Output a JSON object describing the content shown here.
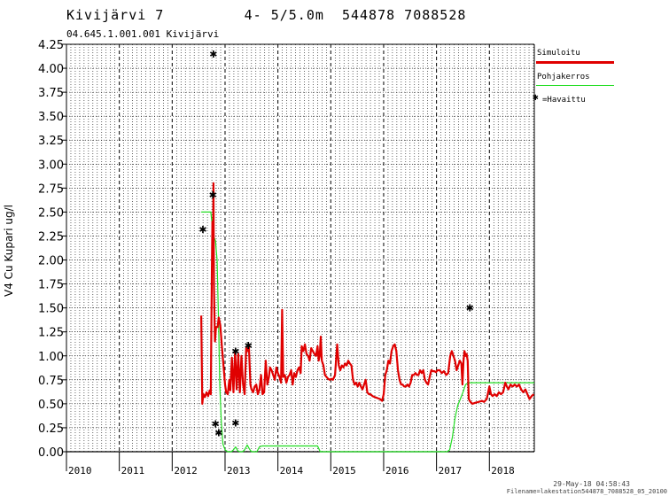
{
  "header": {
    "title": "Kivijärvi 7         4- 5/5.0m  544878 7088528",
    "station": "04.645.1.001.001 Kivijärvi",
    "footer_date": "29-May-18 04:58:43",
    "footer_file": "Filename=lakestation544878_7088528_05_20100"
  },
  "legend": {
    "simulated": "Simuloitu",
    "bottom": "Pohjakerros",
    "observed": "=Havaittu"
  },
  "colors": {
    "simulated": "#e00000",
    "bottom": "#22dd22",
    "observed": "#000000"
  },
  "chart_data": {
    "type": "line",
    "ylabel": "V4 Cu Kupari ug/l",
    "xlabel": "",
    "ylim": [
      0,
      4.25
    ],
    "xlim": [
      2010.0,
      2018.85
    ],
    "yticks": [
      "0.00",
      "0.25",
      "0.50",
      "0.75",
      "1.00",
      "1.25",
      "1.50",
      "1.75",
      "2.00",
      "2.25",
      "2.50",
      "2.75",
      "3.00",
      "3.25",
      "3.50",
      "3.75",
      "4.00",
      "4.25"
    ],
    "xticks": [
      "2010",
      "2011",
      "2012",
      "2013",
      "2014",
      "2015",
      "2016",
      "2017",
      "2018"
    ],
    "grid": true,
    "legend_position": "top-right",
    "series": [
      {
        "name": "Simuloitu",
        "values": [
          [
            2012.55,
            1.42
          ],
          [
            2012.57,
            0.5
          ],
          [
            2012.59,
            0.6
          ],
          [
            2012.62,
            0.57
          ],
          [
            2012.65,
            0.62
          ],
          [
            2012.68,
            0.58
          ],
          [
            2012.71,
            0.64
          ],
          [
            2012.73,
            0.6
          ],
          [
            2012.75,
            1.9
          ],
          [
            2012.76,
            2.4
          ],
          [
            2012.77,
            2.05
          ],
          [
            2012.78,
            2.8
          ],
          [
            2012.79,
            1.7
          ],
          [
            2012.81,
            1.15
          ],
          [
            2012.83,
            1.3
          ],
          [
            2012.86,
            1.3
          ],
          [
            2012.88,
            1.4
          ],
          [
            2012.91,
            1.32
          ],
          [
            2012.94,
            1.1
          ],
          [
            2012.97,
            0.9
          ],
          [
            2013.0,
            0.7
          ],
          [
            2013.02,
            0.62
          ],
          [
            2013.05,
            0.6
          ],
          [
            2013.08,
            0.75
          ],
          [
            2013.1,
            0.64
          ],
          [
            2013.13,
            0.98
          ],
          [
            2013.16,
            0.62
          ],
          [
            2013.19,
            1.05
          ],
          [
            2013.22,
            0.65
          ],
          [
            2013.25,
            1.02
          ],
          [
            2013.28,
            0.62
          ],
          [
            2013.31,
            1.0
          ],
          [
            2013.34,
            0.7
          ],
          [
            2013.37,
            0.6
          ],
          [
            2013.4,
            1.08
          ],
          [
            2013.43,
            1.05
          ],
          [
            2013.45,
            1.12
          ],
          [
            2013.48,
            0.7
          ],
          [
            2013.5,
            0.65
          ],
          [
            2013.53,
            0.62
          ],
          [
            2013.56,
            0.68
          ],
          [
            2013.59,
            0.7
          ],
          [
            2013.62,
            0.6
          ],
          [
            2013.65,
            0.65
          ],
          [
            2013.68,
            0.8
          ],
          [
            2013.71,
            0.6
          ],
          [
            2013.74,
            0.62
          ],
          [
            2013.77,
            0.95
          ],
          [
            2013.8,
            0.7
          ],
          [
            2013.83,
            0.78
          ],
          [
            2013.85,
            0.88
          ],
          [
            2013.88,
            0.85
          ],
          [
            2013.91,
            0.8
          ],
          [
            2013.94,
            0.75
          ],
          [
            2013.97,
            0.88
          ],
          [
            2014.0,
            0.82
          ],
          [
            2014.03,
            0.78
          ],
          [
            2014.06,
            0.72
          ],
          [
            2014.08,
            1.48
          ],
          [
            2014.1,
            0.78
          ],
          [
            2014.13,
            0.8
          ],
          [
            2014.16,
            0.72
          ],
          [
            2014.19,
            0.78
          ],
          [
            2014.22,
            0.8
          ],
          [
            2014.25,
            0.85
          ],
          [
            2014.28,
            0.7
          ],
          [
            2014.31,
            0.82
          ],
          [
            2014.34,
            0.78
          ],
          [
            2014.37,
            0.85
          ],
          [
            2014.4,
            0.88
          ],
          [
            2014.43,
            0.82
          ],
          [
            2014.45,
            1.1
          ],
          [
            2014.48,
            1.05
          ],
          [
            2014.51,
            1.12
          ],
          [
            2014.54,
            1.02
          ],
          [
            2014.57,
            1.0
          ],
          [
            2014.6,
            0.95
          ],
          [
            2014.63,
            1.08
          ],
          [
            2014.66,
            1.05
          ],
          [
            2014.69,
            1.02
          ],
          [
            2014.72,
            1.0
          ],
          [
            2014.75,
            1.1
          ],
          [
            2014.77,
            0.95
          ],
          [
            2014.79,
            1.0
          ],
          [
            2014.81,
            1.2
          ],
          [
            2014.83,
            0.95
          ],
          [
            2014.86,
            0.9
          ],
          [
            2014.89,
            0.8
          ],
          [
            2014.92,
            0.78
          ],
          [
            2014.95,
            0.76
          ],
          [
            2014.98,
            0.75
          ],
          [
            2015.01,
            0.76
          ],
          [
            2015.04,
            0.75
          ],
          [
            2015.08,
            0.8
          ],
          [
            2015.12,
            1.12
          ],
          [
            2015.15,
            0.9
          ],
          [
            2015.18,
            0.85
          ],
          [
            2015.21,
            0.9
          ],
          [
            2015.24,
            0.88
          ],
          [
            2015.27,
            0.92
          ],
          [
            2015.3,
            0.9
          ],
          [
            2015.33,
            0.95
          ],
          [
            2015.36,
            0.92
          ],
          [
            2015.39,
            0.9
          ],
          [
            2015.42,
            0.75
          ],
          [
            2015.45,
            0.7
          ],
          [
            2015.48,
            0.72
          ],
          [
            2015.51,
            0.68
          ],
          [
            2015.54,
            0.72
          ],
          [
            2015.57,
            0.68
          ],
          [
            2015.6,
            0.65
          ],
          [
            2015.63,
            0.7
          ],
          [
            2015.66,
            0.75
          ],
          [
            2015.69,
            0.62
          ],
          [
            2015.72,
            0.6
          ],
          [
            2015.75,
            0.6
          ],
          [
            2015.79,
            0.58
          ],
          [
            2015.83,
            0.57
          ],
          [
            2015.88,
            0.56
          ],
          [
            2015.93,
            0.55
          ],
          [
            2015.97,
            0.53
          ],
          [
            2016.0,
            0.6
          ],
          [
            2016.03,
            0.8
          ],
          [
            2016.06,
            0.85
          ],
          [
            2016.09,
            0.95
          ],
          [
            2016.12,
            0.92
          ],
          [
            2016.15,
            1.05
          ],
          [
            2016.18,
            1.1
          ],
          [
            2016.21,
            1.12
          ],
          [
            2016.24,
            1.05
          ],
          [
            2016.27,
            0.85
          ],
          [
            2016.3,
            0.75
          ],
          [
            2016.33,
            0.7
          ],
          [
            2016.36,
            0.7
          ],
          [
            2016.39,
            0.68
          ],
          [
            2016.42,
            0.68
          ],
          [
            2016.45,
            0.7
          ],
          [
            2016.48,
            0.68
          ],
          [
            2016.51,
            0.72
          ],
          [
            2016.54,
            0.8
          ],
          [
            2016.57,
            0.8
          ],
          [
            2016.6,
            0.82
          ],
          [
            2016.63,
            0.8
          ],
          [
            2016.66,
            0.8
          ],
          [
            2016.69,
            0.85
          ],
          [
            2016.72,
            0.82
          ],
          [
            2016.75,
            0.85
          ],
          [
            2016.78,
            0.75
          ],
          [
            2016.81,
            0.72
          ],
          [
            2016.84,
            0.7
          ],
          [
            2016.87,
            0.78
          ],
          [
            2016.9,
            0.85
          ],
          [
            2016.93,
            0.84
          ],
          [
            2016.96,
            0.84
          ],
          [
            2016.99,
            0.83
          ],
          [
            2017.02,
            0.85
          ],
          [
            2017.06,
            0.85
          ],
          [
            2017.1,
            0.82
          ],
          [
            2017.14,
            0.84
          ],
          [
            2017.18,
            0.8
          ],
          [
            2017.22,
            0.82
          ],
          [
            2017.26,
            1.0
          ],
          [
            2017.29,
            1.05
          ],
          [
            2017.32,
            1.0
          ],
          [
            2017.35,
            0.95
          ],
          [
            2017.38,
            0.85
          ],
          [
            2017.41,
            0.9
          ],
          [
            2017.44,
            0.95
          ],
          [
            2017.47,
            0.92
          ],
          [
            2017.49,
            0.7
          ],
          [
            2017.51,
            0.95
          ],
          [
            2017.53,
            1.05
          ],
          [
            2017.55,
            1.0
          ],
          [
            2017.57,
            1.02
          ],
          [
            2017.59,
            0.95
          ],
          [
            2017.61,
            0.55
          ],
          [
            2017.64,
            0.52
          ],
          [
            2017.68,
            0.5
          ],
          [
            2017.73,
            0.51
          ],
          [
            2017.8,
            0.52
          ],
          [
            2017.86,
            0.53
          ],
          [
            2017.9,
            0.52
          ],
          [
            2017.95,
            0.55
          ],
          [
            2018.0,
            0.68
          ],
          [
            2018.03,
            0.6
          ],
          [
            2018.06,
            0.58
          ],
          [
            2018.1,
            0.6
          ],
          [
            2018.14,
            0.58
          ],
          [
            2018.18,
            0.62
          ],
          [
            2018.22,
            0.6
          ],
          [
            2018.26,
            0.62
          ],
          [
            2018.3,
            0.72
          ],
          [
            2018.33,
            0.68
          ],
          [
            2018.36,
            0.65
          ],
          [
            2018.4,
            0.7
          ],
          [
            2018.44,
            0.68
          ],
          [
            2018.48,
            0.7
          ],
          [
            2018.52,
            0.68
          ],
          [
            2018.56,
            0.7
          ],
          [
            2018.6,
            0.65
          ],
          [
            2018.64,
            0.62
          ],
          [
            2018.68,
            0.65
          ],
          [
            2018.72,
            0.6
          ],
          [
            2018.76,
            0.55
          ],
          [
            2018.8,
            0.58
          ],
          [
            2018.84,
            0.6
          ]
        ]
      },
      {
        "name": "Pohjakerros",
        "values": [
          [
            2012.55,
            2.5
          ],
          [
            2012.73,
            2.5
          ],
          [
            2012.75,
            2.4
          ],
          [
            2012.78,
            2.25
          ],
          [
            2012.82,
            2.2
          ],
          [
            2012.85,
            2.0
          ],
          [
            2012.88,
            1.3
          ],
          [
            2012.9,
            0.7
          ],
          [
            2012.93,
            0.3
          ],
          [
            2012.96,
            0.08
          ],
          [
            2013.0,
            0.02
          ],
          [
            2013.05,
            0.0
          ],
          [
            2013.12,
            0.0
          ],
          [
            2013.16,
            0.02
          ],
          [
            2013.2,
            0.05
          ],
          [
            2013.24,
            0.01
          ],
          [
            2013.28,
            0.0
          ],
          [
            2013.33,
            0.0
          ],
          [
            2013.37,
            0.02
          ],
          [
            2013.42,
            0.07
          ],
          [
            2013.46,
            0.03
          ],
          [
            2013.5,
            0.0
          ],
          [
            2013.55,
            0.0
          ],
          [
            2013.6,
            0.0
          ],
          [
            2013.65,
            0.05
          ],
          [
            2013.7,
            0.06
          ],
          [
            2013.8,
            0.06
          ],
          [
            2014.0,
            0.06
          ],
          [
            2014.2,
            0.06
          ],
          [
            2014.4,
            0.06
          ],
          [
            2014.6,
            0.06
          ],
          [
            2014.75,
            0.06
          ],
          [
            2014.8,
            0.0
          ],
          [
            2015.0,
            0.0
          ],
          [
            2015.5,
            0.0
          ],
          [
            2016.0,
            0.0
          ],
          [
            2016.5,
            0.0
          ],
          [
            2017.0,
            0.0
          ],
          [
            2017.2,
            0.0
          ],
          [
            2017.25,
            0.02
          ],
          [
            2017.3,
            0.15
          ],
          [
            2017.35,
            0.35
          ],
          [
            2017.4,
            0.48
          ],
          [
            2017.45,
            0.55
          ],
          [
            2017.5,
            0.62
          ],
          [
            2017.55,
            0.7
          ],
          [
            2017.6,
            0.72
          ],
          [
            2018.0,
            0.72
          ],
          [
            2018.5,
            0.72
          ],
          [
            2018.85,
            0.72
          ]
        ]
      },
      {
        "name": "=Havaittu",
        "values": [
          [
            2012.58,
            2.32
          ],
          [
            2012.78,
            4.15
          ],
          [
            2012.77,
            2.68
          ],
          [
            2012.82,
            0.29
          ],
          [
            2012.88,
            0.2
          ],
          [
            2013.2,
            1.05
          ],
          [
            2013.2,
            0.3
          ],
          [
            2013.44,
            1.11
          ],
          [
            2017.63,
            1.5
          ]
        ]
      }
    ]
  }
}
